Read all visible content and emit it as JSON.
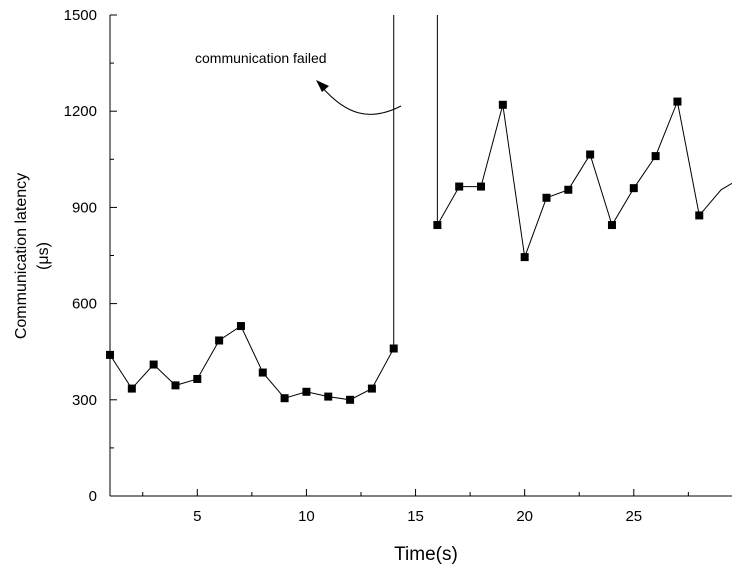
{
  "chart_data": {
    "type": "line",
    "xlabel": "Time(s)",
    "ylabel": "Communication latency",
    "ylabel_unit": "(μs)",
    "xlim": [
      1,
      29.5
    ],
    "ylim": [
      0,
      1500
    ],
    "x_ticks": [
      5,
      10,
      15,
      20,
      25
    ],
    "y_ticks": [
      0,
      300,
      600,
      900,
      1200,
      1500
    ],
    "grid": false,
    "legend": false,
    "marker": "filled-square",
    "series": [
      {
        "segment": "before-failure",
        "x": [
          1,
          2,
          3,
          4,
          5,
          6,
          7,
          8,
          9,
          10,
          11,
          12,
          13,
          14
        ],
        "y": [
          440,
          335,
          410,
          345,
          365,
          485,
          530,
          385,
          305,
          325,
          310,
          300,
          335,
          460
        ]
      },
      {
        "segment": "after-failure",
        "x": [
          16,
          17,
          18,
          19,
          20,
          21,
          22,
          23,
          24,
          25,
          26,
          27,
          28,
          29,
          29.5
        ],
        "y": [
          845,
          965,
          965,
          1220,
          745,
          930,
          955,
          1065,
          845,
          960,
          1060,
          1230,
          875,
          955,
          975
        ]
      }
    ],
    "failure_spikes": [
      {
        "x": 14,
        "from": 460,
        "to": 1500
      },
      {
        "x": 16,
        "from": 845,
        "to": 1500
      }
    ],
    "annotations": [
      {
        "text": "communication failed",
        "points_to_x": 14,
        "points_to_y": 1210
      }
    ]
  }
}
